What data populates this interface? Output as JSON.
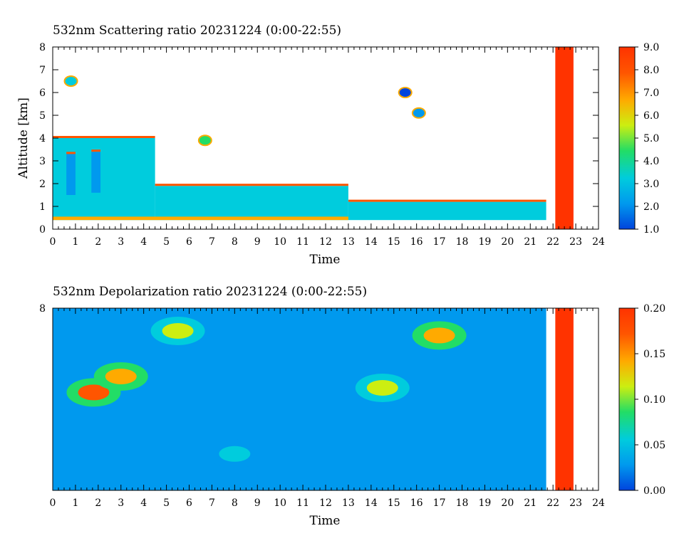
{
  "chart_data": [
    {
      "type": "heatmap",
      "title": "532nm Scattering ratio  20231224 (0:00-22:55)",
      "xlabel": "Time",
      "ylabel": "Altitude [km]",
      "xlim": [
        0,
        24
      ],
      "ylim": [
        0,
        8
      ],
      "x_ticks": [
        "0",
        "1",
        "2",
        "3",
        "4",
        "5",
        "6",
        "7",
        "8",
        "9",
        "10",
        "11",
        "12",
        "13",
        "14",
        "15",
        "16",
        "17",
        "18",
        "19",
        "20",
        "21",
        "22",
        "23",
        "24"
      ],
      "y_ticks": [
        "0",
        "1",
        "2",
        "3",
        "4",
        "5",
        "6",
        "7",
        "8"
      ],
      "colorbar": {
        "range": [
          1.0,
          9.0
        ],
        "ticks": [
          "1.0",
          "2.0",
          "3.0",
          "4.0",
          "5.0",
          "6.0",
          "7.0",
          "8.0",
          "9.0"
        ],
        "colors": [
          "#0044dd",
          "#0099ee",
          "#00ccdd",
          "#22dd66",
          "#ccee11",
          "#ffaa00",
          "#ff5500",
          "#ff3300"
        ]
      },
      "fields": [
        {
          "t0": 0,
          "t1": 4.5,
          "z0": 0.4,
          "z1": 4.0,
          "value": 2.8
        },
        {
          "t0": 0.6,
          "t1": 1.0,
          "z0": 1.5,
          "z1": 3.3,
          "value": 1.6
        },
        {
          "t0": 1.7,
          "t1": 2.1,
          "z0": 1.6,
          "z1": 3.4,
          "value": 1.8
        },
        {
          "t0": 4.5,
          "t1": 13.0,
          "z0": 0.4,
          "z1": 1.9,
          "value": 3.6
        },
        {
          "t0": 13.0,
          "t1": 21.7,
          "z0": 0.4,
          "z1": 1.2,
          "value": 3.5
        },
        {
          "t0": 0,
          "t1": 13.0,
          "z0": 0.4,
          "z1": 0.55,
          "value": 6.5
        },
        {
          "t0": 22.1,
          "t1": 22.9,
          "z0": 0,
          "z1": 8,
          "value": 9.0
        }
      ],
      "clouds": [
        {
          "t": 0.8,
          "z": 6.5,
          "value": 3.0
        },
        {
          "t": 6.7,
          "z": 3.9,
          "value": 4.0
        },
        {
          "t": 16.1,
          "z": 5.1,
          "value": 2.2
        },
        {
          "t": 15.5,
          "z": 6.0,
          "value": 1.5
        }
      ]
    },
    {
      "type": "heatmap",
      "title": "532nm Depolarization ratio  20231224 (0:00-22:55)",
      "xlabel": "Time",
      "ylabel": "",
      "xlim": [
        0,
        24
      ],
      "ylim": [
        0,
        8
      ],
      "x_ticks": [
        "0",
        "1",
        "2",
        "3",
        "4",
        "5",
        "6",
        "7",
        "8",
        "9",
        "10",
        "11",
        "12",
        "13",
        "14",
        "15",
        "16",
        "17",
        "18",
        "19",
        "20",
        "21",
        "22",
        "23",
        "24"
      ],
      "y_ticks": [
        "8"
      ],
      "colorbar": {
        "range": [
          0.0,
          0.2
        ],
        "ticks": [
          "0.00",
          "0.05",
          "0.10",
          "0.15",
          "0.20"
        ],
        "colors": [
          "#0044dd",
          "#0099ee",
          "#00ccdd",
          "#22dd66",
          "#ccee11",
          "#ffaa00",
          "#ff5500",
          "#ff3300"
        ]
      },
      "background_value": 0.035,
      "hotspots": [
        {
          "t": 1.8,
          "z": 4.3,
          "value": 0.17
        },
        {
          "t": 3.0,
          "z": 5.0,
          "value": 0.15
        },
        {
          "t": 5.5,
          "z": 7.0,
          "value": 0.12
        },
        {
          "t": 14.5,
          "z": 4.5,
          "value": 0.11
        },
        {
          "t": 17.0,
          "z": 6.8,
          "value": 0.14
        },
        {
          "t": 8.0,
          "z": 1.6,
          "value": 0.07
        }
      ],
      "red_bar": {
        "t0": 22.1,
        "t1": 22.9,
        "value": 0.2
      }
    }
  ]
}
